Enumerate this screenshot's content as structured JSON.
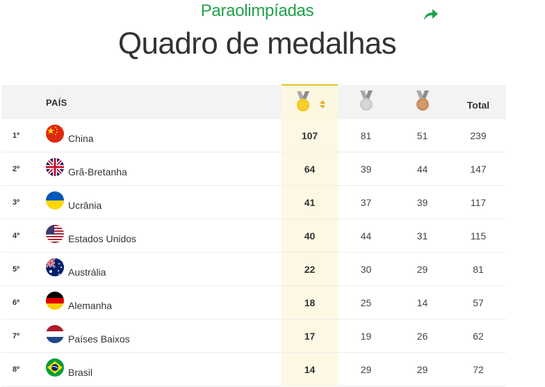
{
  "header": {
    "kicker": "Paraolimpíadas",
    "title": "Quadro de medalhas"
  },
  "table": {
    "columns": {
      "country": "PAÍS",
      "gold": "gold-medal-icon",
      "silver": "silver-medal-icon",
      "bronze": "bronze-medal-icon",
      "total": "Total"
    },
    "rows": [
      {
        "rank": "1º",
        "country": "China",
        "flag": "china",
        "gold": "107",
        "silver": "81",
        "bronze": "51",
        "total": "239"
      },
      {
        "rank": "2º",
        "country": "Grã-Bretanha",
        "flag": "great-britain",
        "gold": "64",
        "silver": "39",
        "bronze": "44",
        "total": "147"
      },
      {
        "rank": "3º",
        "country": "Ucrânia",
        "flag": "ukraine",
        "gold": "41",
        "silver": "37",
        "bronze": "39",
        "total": "117"
      },
      {
        "rank": "4º",
        "country": "Estados Unidos",
        "flag": "united-states",
        "gold": "40",
        "silver": "44",
        "bronze": "31",
        "total": "115"
      },
      {
        "rank": "5º",
        "country": "Austrália",
        "flag": "australia",
        "gold": "22",
        "silver": "30",
        "bronze": "29",
        "total": "81"
      },
      {
        "rank": "6º",
        "country": "Alemanha",
        "flag": "germany",
        "gold": "18",
        "silver": "25",
        "bronze": "14",
        "total": "57"
      },
      {
        "rank": "7º",
        "country": "Países Baixos",
        "flag": "netherlands",
        "gold": "17",
        "silver": "19",
        "bronze": "26",
        "total": "62"
      },
      {
        "rank": "8º",
        "country": "Brasil",
        "flag": "brazil",
        "gold": "14",
        "silver": "29",
        "bronze": "29",
        "total": "72"
      }
    ]
  },
  "colors": {
    "brand_green": "#1fa24a",
    "gold": "#f5c518",
    "silver": "#c9c9c9",
    "bronze": "#c98a5a",
    "gold_column_bg": "#fdf8e3"
  }
}
